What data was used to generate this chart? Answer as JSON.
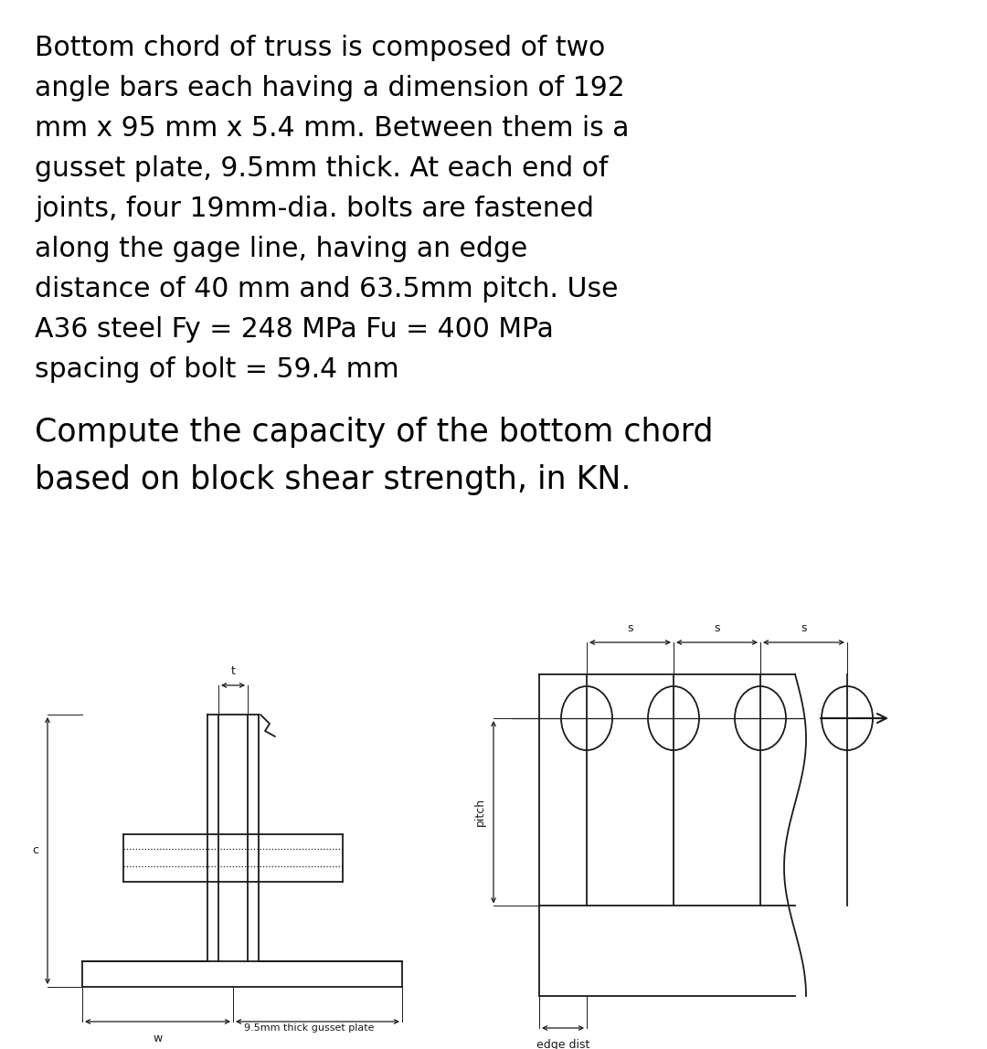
{
  "background_color": "#ffffff",
  "text_color": "#000000",
  "title_lines": [
    "Bottom chord of truss is composed of two",
    "angle bars each having a dimension of 192",
    "mm x 95 mm x 5.4 mm. Between them is a",
    "gusset plate, 9.5mm thick. At each end of",
    "joints, four 19mm-dia. bolts are fastened",
    "along the gage line, having an edge",
    "distance of 40 mm and 63.5mm pitch. Use",
    "A36 steel Fy = 248 MPa Fu = 400 MPa",
    "spacing of bolt = 59.4 mm"
  ],
  "question_lines": [
    "Compute the capacity of the bottom chord",
    "based on block shear strength, in KN."
  ],
  "title_fontsize": 21.5,
  "question_fontsize": 25,
  "line_color": "#1a1a1a",
  "lw": 1.3,
  "label_fontsize": 9
}
